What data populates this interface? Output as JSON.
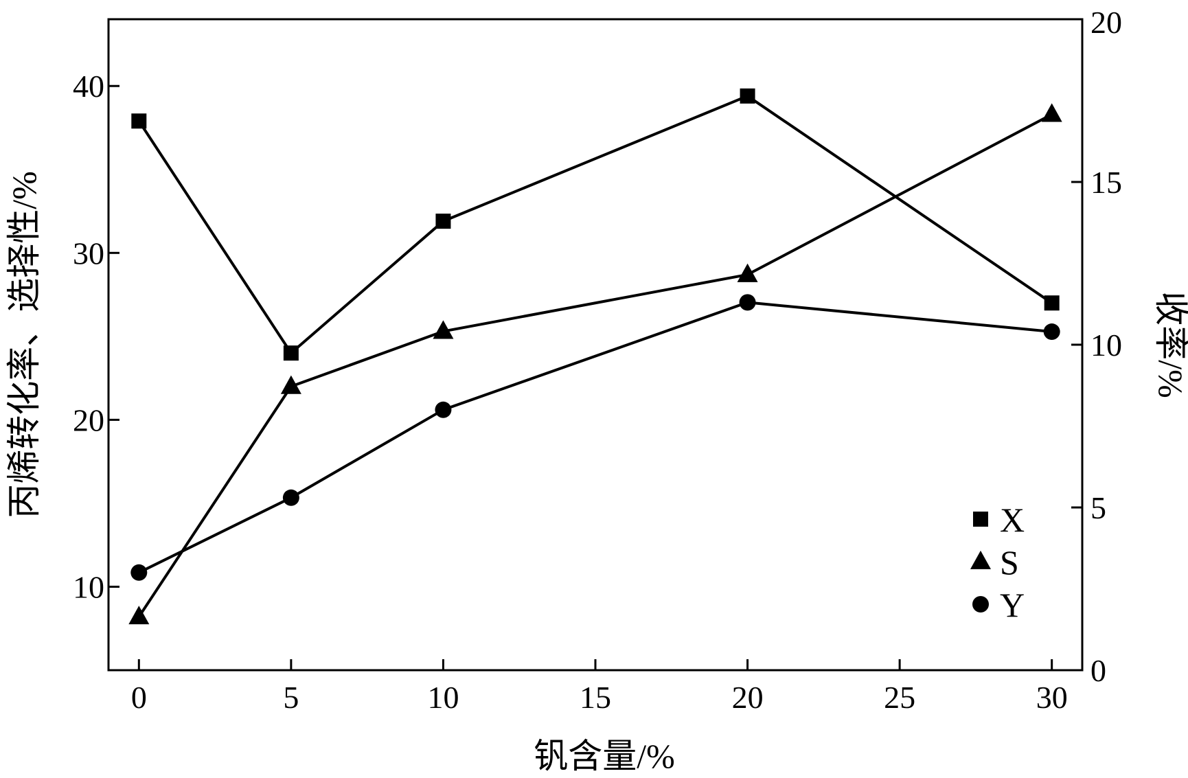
{
  "chart_data": {
    "type": "line",
    "title": "",
    "xlabel": "钒含量/%",
    "ylabel_left": "丙烯转化率、选择性/%",
    "ylabel_right": "收率/%",
    "xlim": [
      -1,
      31
    ],
    "ylim_left": [
      5,
      44
    ],
    "ylim_right": [
      0,
      20
    ],
    "x_ticks": [
      0,
      5,
      10,
      15,
      20,
      25,
      30
    ],
    "y_left_ticks": [
      10,
      20,
      30,
      40
    ],
    "y_right_ticks": [
      0,
      5,
      10,
      15,
      20
    ],
    "grid": false,
    "legend_position": "bottom-right",
    "series": [
      {
        "name": "X",
        "marker": "square",
        "axis": "left",
        "x": [
          0,
          5,
          10,
          20,
          30
        ],
        "values": [
          37.9,
          24.0,
          31.9,
          39.4,
          27.0
        ]
      },
      {
        "name": "S",
        "marker": "triangle",
        "axis": "left",
        "x": [
          0,
          5,
          10,
          20,
          30
        ],
        "values": [
          8.2,
          22.0,
          25.3,
          28.7,
          38.3
        ]
      },
      {
        "name": "Y",
        "marker": "circle",
        "axis": "right",
        "x": [
          0,
          5,
          10,
          20,
          30
        ],
        "values": [
          3.0,
          5.3,
          8.0,
          11.3,
          10.4
        ]
      }
    ]
  }
}
